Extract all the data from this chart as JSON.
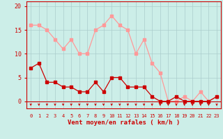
{
  "x": [
    0,
    1,
    2,
    3,
    4,
    5,
    6,
    7,
    8,
    9,
    10,
    11,
    12,
    13,
    14,
    15,
    16,
    17,
    18,
    19,
    20,
    21,
    22,
    23
  ],
  "mean_wind": [
    7,
    8,
    4,
    4,
    3,
    3,
    2,
    2,
    4,
    2,
    5,
    5,
    3,
    3,
    3,
    1,
    0,
    0,
    1,
    0,
    0,
    0,
    0,
    1
  ],
  "gusts": [
    16,
    16,
    15,
    13,
    11,
    13,
    10,
    10,
    15,
    16,
    18,
    16,
    15,
    10,
    13,
    8,
    6,
    0,
    0,
    1,
    0,
    2,
    0,
    1
  ],
  "mean_color": "#cc0000",
  "gust_color": "#ff9999",
  "bg_color": "#cceee8",
  "grid_color": "#aacccc",
  "xlabel": "Vent moyen/en rafales ( km/h )",
  "ylabel_ticks": [
    0,
    5,
    10,
    15,
    20
  ],
  "ylim": [
    -1.5,
    21
  ],
  "xlim": [
    -0.5,
    23.5
  ],
  "markersize": 2.5,
  "linewidth": 0.9
}
